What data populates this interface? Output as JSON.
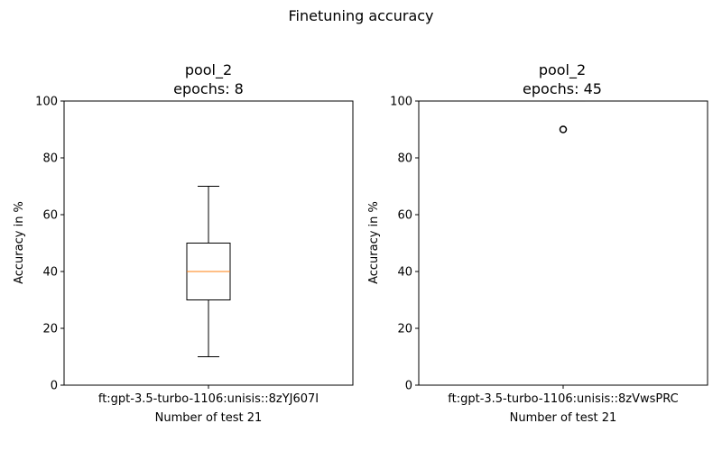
{
  "figure": {
    "suptitle": "Finetuning accuracy"
  },
  "chart_data": [
    {
      "type": "box",
      "title_line1": "pool_2",
      "title_line2": "epochs: 8",
      "xlabel": "Number of test 21",
      "ylabel": "Accuracy in %",
      "ylim": [
        0,
        100
      ],
      "yticks": [
        "0",
        "20",
        "40",
        "60",
        "80",
        "100"
      ],
      "categories": [
        "ft:gpt-3.5-turbo-1106:unisis::8zYJ607I"
      ],
      "boxes": [
        {
          "whisker_low": 10,
          "q1": 30,
          "median": 40,
          "q3": 50,
          "whisker_high": 70,
          "outliers": []
        }
      ],
      "grid": false,
      "colors": {
        "box": "#000000",
        "median": "#ff7f0e"
      }
    },
    {
      "type": "box",
      "title_line1": "pool_2",
      "title_line2": "epochs: 45",
      "xlabel": "Number of test 21",
      "ylabel": "Accuracy in %",
      "ylim": [
        0,
        100
      ],
      "yticks": [
        "0",
        "20",
        "40",
        "60",
        "80",
        "100"
      ],
      "categories": [
        "ft:gpt-3.5-turbo-1106:unisis::8zVwsPRC"
      ],
      "boxes": [
        {
          "whisker_low": 100,
          "q1": 100,
          "median": 100,
          "q3": 100,
          "whisker_high": 100,
          "outliers": [
            90
          ]
        }
      ],
      "grid": false,
      "colors": {
        "box": "#000000",
        "median": "#ff7f0e"
      }
    }
  ]
}
